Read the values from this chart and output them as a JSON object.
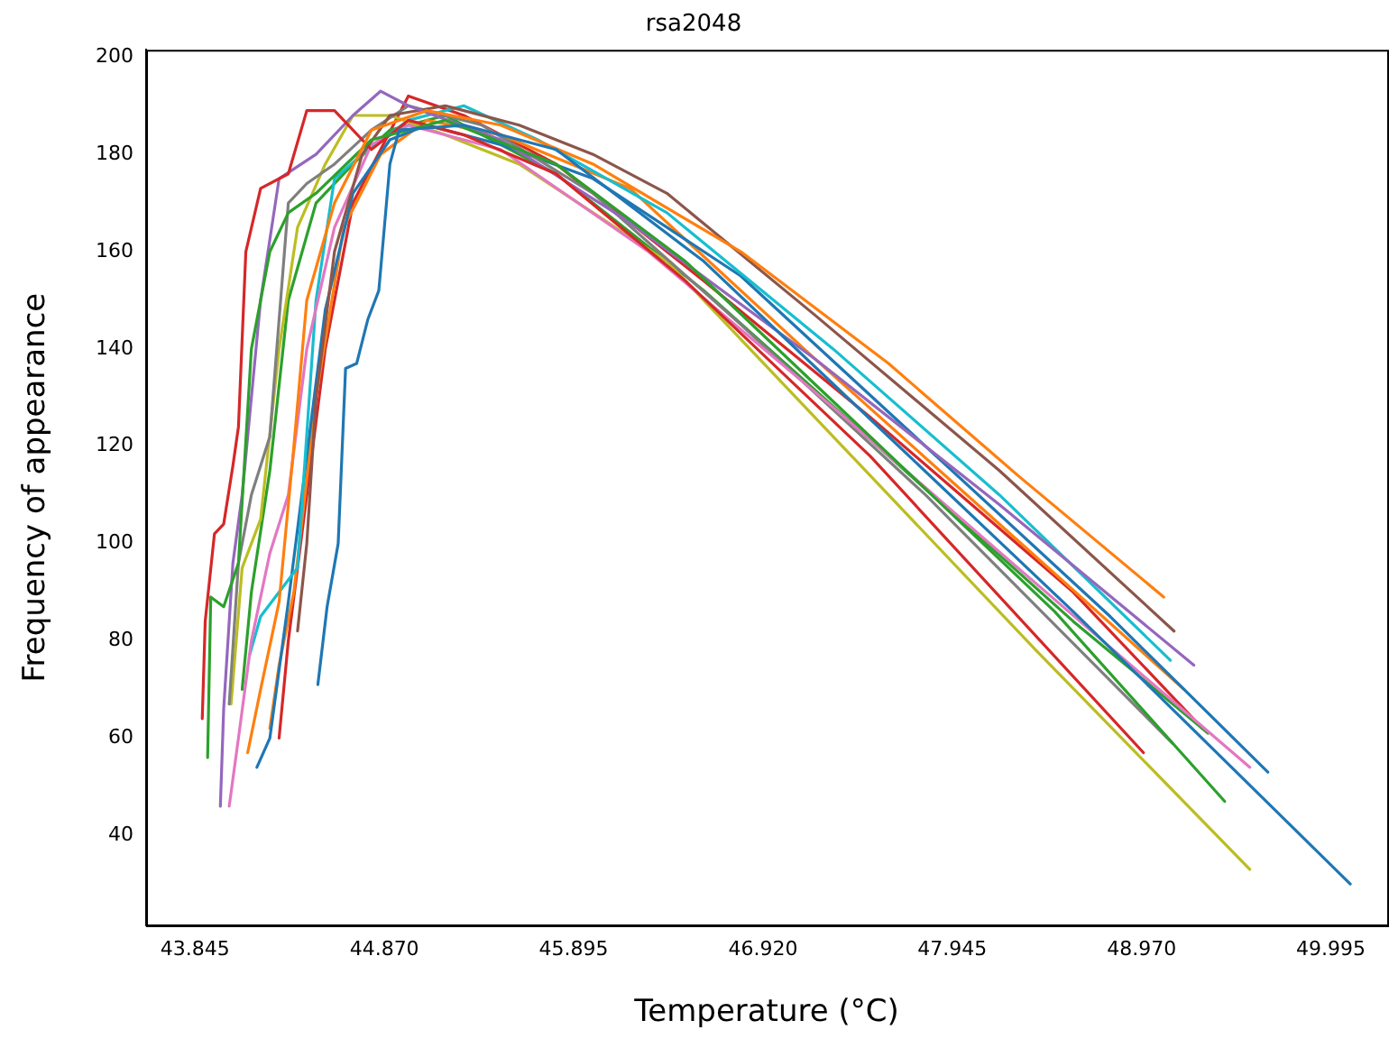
{
  "chart_data": {
    "type": "line",
    "title": "rsa2048",
    "xlabel": "Temperature (°C)",
    "ylabel": "Frequency of appearance",
    "marker": "none",
    "line_style": "solid",
    "xlim": [
      43.58,
      50.3
    ],
    "xticks": [
      43.845,
      {
        "value": 44.87,
        "label": "44.870"
      },
      45.895,
      {
        "value": 46.92,
        "label": "46.920"
      },
      47.945,
      {
        "value": 48.97,
        "label": "48.970"
      },
      49.995
    ],
    "ylim": [
      21.5,
      201.5
    ],
    "yticks": [
      40,
      60,
      80,
      100,
      120,
      140,
      160,
      180,
      200
    ],
    "series": [
      {
        "color": "#1f77b4",
        "x": [
          44.51,
          44.56,
          44.62,
          44.66,
          44.72,
          44.78,
          44.84,
          44.9,
          44.95,
          45.3,
          45.8,
          46.6,
          47.6,
          48.6,
          50.1
        ],
        "values": [
          71,
          87,
          100,
          136,
          137,
          146,
          152,
          178,
          185,
          186,
          181,
          158,
          122,
          86,
          30
        ]
      },
      {
        "color": "#ff7f0e",
        "x": [
          44.13,
          44.2,
          44.3,
          44.38,
          44.45,
          44.6,
          44.8,
          45.1,
          45.5,
          46,
          46.8,
          47.6,
          48.3,
          49.09
        ],
        "values": [
          57,
          70,
          88,
          120,
          150,
          170,
          185,
          189,
          186,
          178,
          160,
          137,
          114,
          89
        ]
      },
      {
        "color": "#2ca02c",
        "x": [
          43.913,
          43.93,
          44.0,
          44.08,
          44.15,
          44.25,
          44.35,
          44.5,
          44.8,
          45.2,
          45.8,
          46.5,
          47.5,
          48.5,
          49.42
        ],
        "values": [
          56,
          89,
          87,
          96,
          140,
          160,
          168,
          172,
          183,
          187,
          178,
          158,
          122,
          86,
          47
        ]
      },
      {
        "color": "#d62728",
        "x": [
          43.884,
          43.9,
          43.95,
          44.0,
          44.05,
          44.08,
          44.12,
          44.2,
          44.35,
          44.45,
          44.6,
          44.8,
          45.0,
          45.3,
          45.8,
          46.5,
          47.5,
          48.98
        ],
        "values": [
          64,
          84,
          102,
          104,
          116,
          124,
          160,
          173,
          176,
          189,
          189,
          181,
          187,
          184,
          176,
          154,
          118,
          57
        ]
      },
      {
        "color": "#9467bd",
        "x": [
          43.982,
          44.0,
          44.05,
          44.1,
          44.2,
          44.3,
          44.5,
          44.7,
          44.85,
          45.0,
          45.5,
          46.2,
          47.2,
          48.2,
          49.253
        ],
        "values": [
          46,
          66,
          96,
          110,
          150,
          175,
          180,
          188,
          193,
          190,
          183,
          166,
          138,
          108,
          75
        ]
      },
      {
        "color": "#8c564b",
        "x": [
          44.4,
          44.45,
          44.5,
          44.6,
          44.75,
          44.9,
          45.2,
          45.6,
          46.0,
          46.4,
          47.2,
          48.2,
          49.146
        ],
        "values": [
          82,
          100,
          130,
          160,
          180,
          188,
          190,
          186,
          180,
          172,
          147,
          115,
          82
        ]
      },
      {
        "color": "#e377c2",
        "x": [
          44.03,
          44.08,
          44.15,
          44.25,
          44.35,
          44.45,
          44.6,
          44.8,
          45.0,
          45.5,
          46.3,
          47.3,
          48.3,
          49.556
        ],
        "values": [
          46,
          60,
          80,
          98,
          110,
          140,
          165,
          182,
          186,
          181,
          160,
          128,
          95,
          54
        ]
      },
      {
        "color": "#7f7f7f",
        "x": [
          44.03,
          44.08,
          44.15,
          44.25,
          44.35,
          44.45,
          44.6,
          44.8,
          45.0,
          45.4,
          46.0,
          46.8,
          47.8,
          49.136
        ],
        "values": [
          67,
          96,
          110,
          122,
          170,
          174,
          178,
          185,
          190,
          186,
          172,
          145,
          110,
          59
        ]
      },
      {
        "color": "#bcbd22",
        "x": [
          44.04,
          44.1,
          44.2,
          44.3,
          44.4,
          44.55,
          44.7,
          44.9,
          45.2,
          45.6,
          46.4,
          47.4,
          48.4,
          49.556
        ],
        "values": [
          67,
          95,
          105,
          140,
          165,
          178,
          188,
          188,
          184,
          178,
          158,
          118,
          78,
          33
        ]
      },
      {
        "color": "#17becf",
        "x": [
          44.14,
          44.2,
          44.3,
          44.4,
          44.5,
          44.6,
          44.75,
          45.0,
          45.3,
          45.7,
          46.4,
          47.3,
          48.2,
          49.126
        ],
        "values": [
          77,
          85,
          90,
          95,
          150,
          175,
          180,
          187,
          190,
          183,
          168,
          140,
          110,
          76
        ]
      },
      {
        "color": "#1f77b4",
        "x": [
          44.18,
          44.25,
          44.35,
          44.45,
          44.55,
          44.7,
          44.9,
          45.1,
          45.5,
          46.0,
          46.8,
          47.8,
          48.8,
          49.654
        ],
        "values": [
          54,
          60,
          88,
          118,
          148,
          172,
          183,
          186,
          182,
          175,
          155,
          120,
          85,
          53
        ]
      },
      {
        "color": "#ff7f0e",
        "x": [
          44.25,
          44.3,
          44.38,
          44.5,
          44.65,
          44.85,
          45.1,
          45.5,
          46.2,
          47.2,
          48.2,
          49.2
        ],
        "values": [
          62,
          75,
          90,
          130,
          165,
          180,
          187,
          184,
          173,
          138,
          104,
          70
        ]
      },
      {
        "color": "#2ca02c",
        "x": [
          44.1,
          44.15,
          44.25,
          44.35,
          44.5,
          44.7,
          44.9,
          45.2,
          45.8,
          46.6,
          47.6,
          48.6,
          49.33
        ],
        "values": [
          70,
          90,
          115,
          150,
          170,
          178,
          185,
          188,
          176,
          152,
          118,
          84,
          61
        ]
      },
      {
        "color": "#d62728",
        "x": [
          44.3,
          44.35,
          44.45,
          44.55,
          44.7,
          44.85,
          45.0,
          45.3,
          45.8,
          46.6,
          47.5,
          48.6,
          49.3
        ],
        "values": [
          60,
          80,
          110,
          140,
          170,
          181,
          192,
          188,
          178,
          154,
          126,
          90,
          62
        ]
      }
    ]
  }
}
